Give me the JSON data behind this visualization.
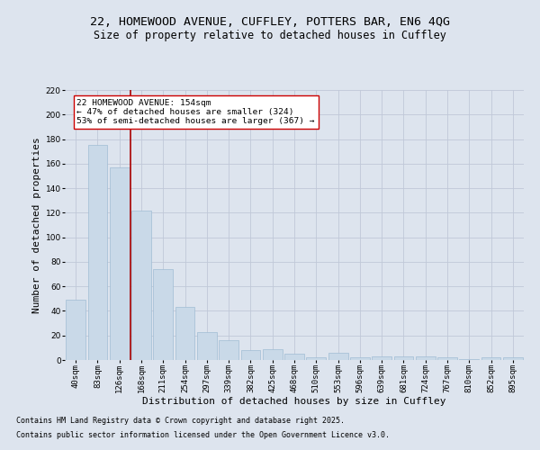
{
  "title1": "22, HOMEWOOD AVENUE, CUFFLEY, POTTERS BAR, EN6 4QG",
  "title2": "Size of property relative to detached houses in Cuffley",
  "xlabel": "Distribution of detached houses by size in Cuffley",
  "ylabel": "Number of detached properties",
  "categories": [
    "40sqm",
    "83sqm",
    "126sqm",
    "168sqm",
    "211sqm",
    "254sqm",
    "297sqm",
    "339sqm",
    "382sqm",
    "425sqm",
    "468sqm",
    "510sqm",
    "553sqm",
    "596sqm",
    "639sqm",
    "681sqm",
    "724sqm",
    "767sqm",
    "810sqm",
    "852sqm",
    "895sqm"
  ],
  "values": [
    49,
    175,
    157,
    122,
    74,
    43,
    23,
    16,
    8,
    9,
    5,
    2,
    6,
    2,
    3,
    3,
    3,
    2,
    1,
    2,
    2
  ],
  "bar_color": "#c9d9e8",
  "bar_edge_color": "#a0bcd4",
  "vline_x": 2.5,
  "vline_color": "#aa0000",
  "ylim": [
    0,
    220
  ],
  "yticks": [
    0,
    20,
    40,
    60,
    80,
    100,
    120,
    140,
    160,
    180,
    200,
    220
  ],
  "annotation_text": "22 HOMEWOOD AVENUE: 154sqm\n← 47% of detached houses are smaller (324)\n53% of semi-detached houses are larger (367) →",
  "annotation_box_color": "#ffffff",
  "annotation_box_edge": "#cc0000",
  "footnote1": "Contains HM Land Registry data © Crown copyright and database right 2025.",
  "footnote2": "Contains public sector information licensed under the Open Government Licence v3.0.",
  "background_color": "#dde4ee",
  "grid_color": "#c0c8d8",
  "title1_fontsize": 9.5,
  "title2_fontsize": 8.5,
  "tick_fontsize": 6.5,
  "label_fontsize": 8,
  "annot_fontsize": 6.8,
  "footnote_fontsize": 6
}
